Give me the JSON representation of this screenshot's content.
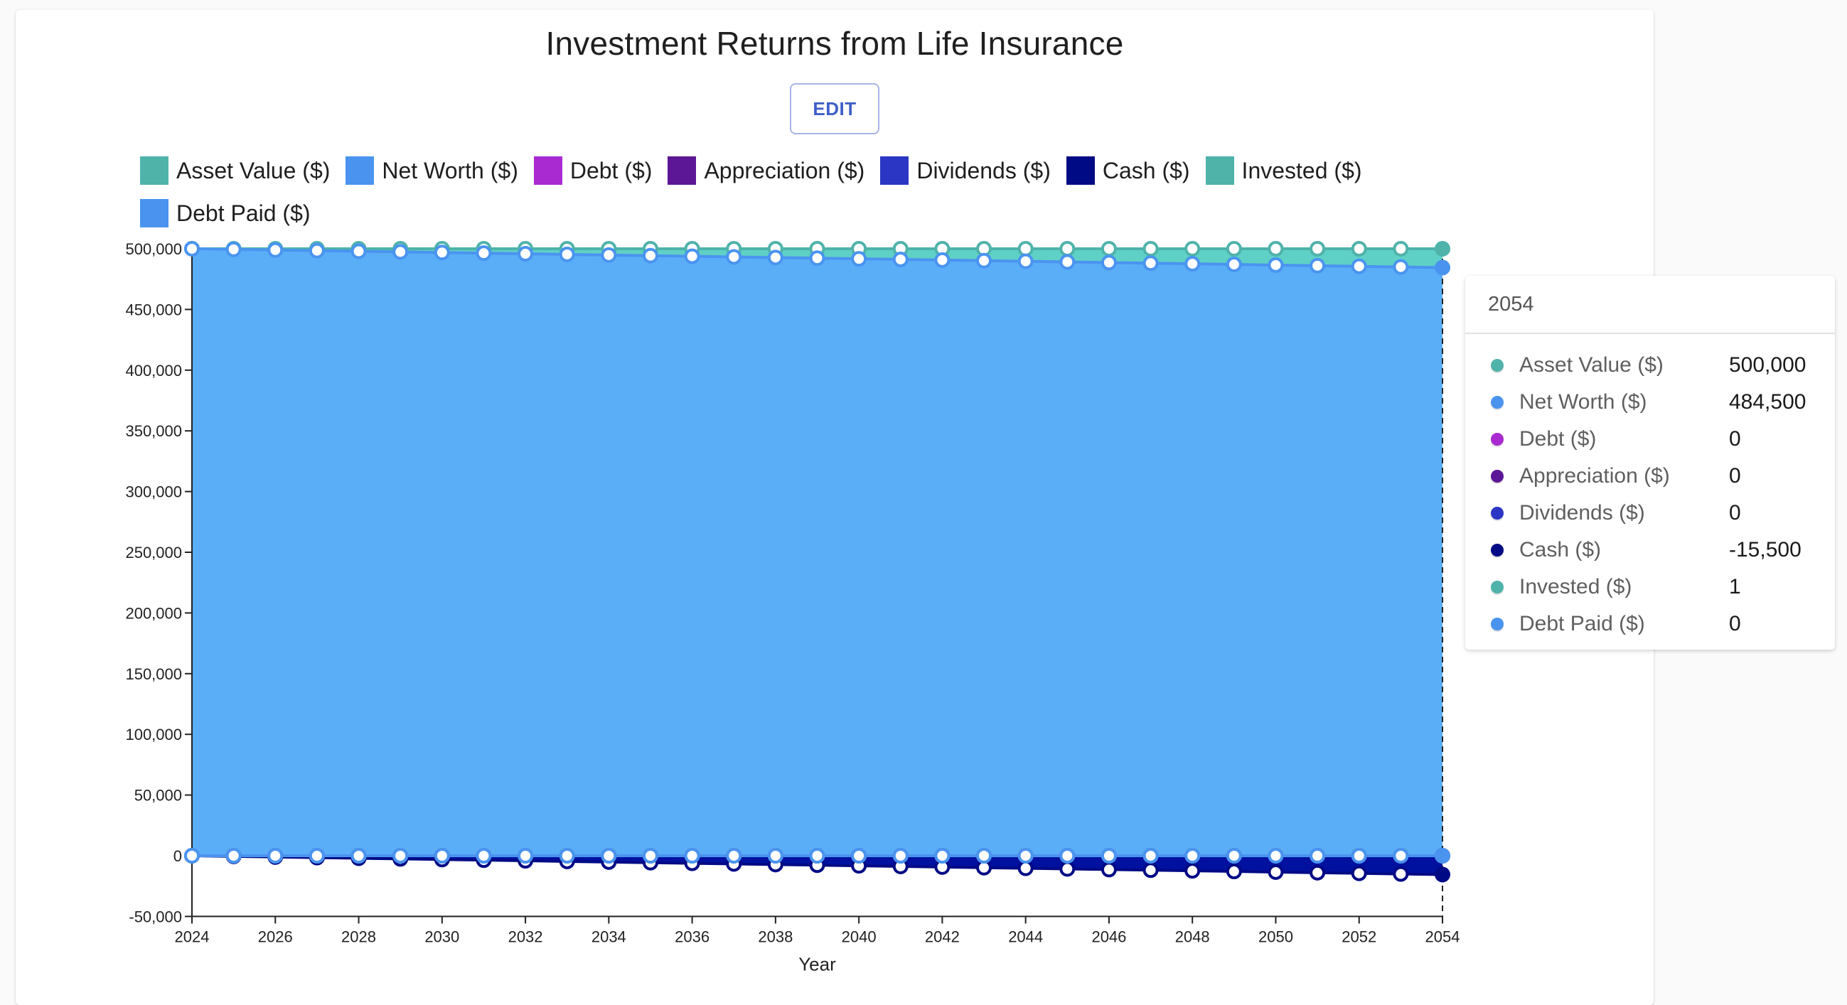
{
  "title": "Investment Returns from Life Insurance",
  "edit_button": "EDIT",
  "legend": [
    {
      "label": "Asset Value ($)",
      "color": "#4fb3aa"
    },
    {
      "label": "Net Worth ($)",
      "color": "#4a94f0"
    },
    {
      "label": "Debt ($)",
      "color": "#a92ad0"
    },
    {
      "label": "Appreciation ($)",
      "color": "#5b1796"
    },
    {
      "label": "Dividends ($)",
      "color": "#2b36c4"
    },
    {
      "label": "Cash ($)",
      "color": "#000a85"
    },
    {
      "label": "Invested ($)",
      "color": "#4fb3aa"
    },
    {
      "label": "Debt Paid ($)",
      "color": "#4a94f0"
    }
  ],
  "tooltip": {
    "header": "2054",
    "rows": [
      {
        "label": "Asset Value ($)",
        "value": "500,000",
        "color": "#4fb3aa"
      },
      {
        "label": "Net Worth ($)",
        "value": "484,500",
        "color": "#4a94f0"
      },
      {
        "label": "Debt ($)",
        "value": "0",
        "color": "#a92ad0"
      },
      {
        "label": "Appreciation ($)",
        "value": "0",
        "color": "#5b1796"
      },
      {
        "label": "Dividends ($)",
        "value": "0",
        "color": "#2b36c4"
      },
      {
        "label": "Cash ($)",
        "value": "-15,500",
        "color": "#000a85"
      },
      {
        "label": "Invested ($)",
        "value": "1",
        "color": "#4fb3aa"
      },
      {
        "label": "Debt Paid ($)",
        "value": "0",
        "color": "#4a94f0"
      }
    ]
  },
  "chart_data": {
    "type": "area",
    "title": "Investment Returns from Life Insurance",
    "xlabel": "Year",
    "ylabel": "",
    "x": [
      2024,
      2025,
      2026,
      2027,
      2028,
      2029,
      2030,
      2031,
      2032,
      2033,
      2034,
      2035,
      2036,
      2037,
      2038,
      2039,
      2040,
      2041,
      2042,
      2043,
      2044,
      2045,
      2046,
      2047,
      2048,
      2049,
      2050,
      2051,
      2052,
      2053,
      2054
    ],
    "xticks": [
      2024,
      2026,
      2028,
      2030,
      2032,
      2034,
      2036,
      2038,
      2040,
      2042,
      2044,
      2046,
      2048,
      2050,
      2052,
      2054
    ],
    "yticks": [
      -50000,
      0,
      50000,
      100000,
      150000,
      200000,
      250000,
      300000,
      350000,
      400000,
      450000,
      500000
    ],
    "ytick_labels": [
      "-50,000",
      "0",
      "50,000",
      "100,000",
      "150,000",
      "200,000",
      "250,000",
      "300,000",
      "350,000",
      "400,000",
      "450,000",
      "500,000"
    ],
    "ylim": [
      -50000,
      500000
    ],
    "xlim": [
      2024,
      2054
    ],
    "grid": false,
    "legend_position": "top",
    "series": [
      {
        "name": "Asset Value ($)",
        "color": "#4fb3aa",
        "fill": "#5fd0c6",
        "values": [
          500000,
          500000,
          500000,
          500000,
          500000,
          500000,
          500000,
          500000,
          500000,
          500000,
          500000,
          500000,
          500000,
          500000,
          500000,
          500000,
          500000,
          500000,
          500000,
          500000,
          500000,
          500000,
          500000,
          500000,
          500000,
          500000,
          500000,
          500000,
          500000,
          500000,
          500000
        ]
      },
      {
        "name": "Net Worth ($)",
        "color": "#4a94f0",
        "fill": "#5aaef7",
        "values": [
          500000,
          499483,
          498967,
          498450,
          497933,
          497417,
          496900,
          496383,
          495867,
          495350,
          494833,
          494317,
          493800,
          493283,
          492767,
          492250,
          491733,
          491217,
          490700,
          490183,
          489667,
          489150,
          488633,
          488117,
          487600,
          487083,
          486567,
          486050,
          485533,
          485017,
          484500
        ]
      },
      {
        "name": "Debt ($)",
        "color": "#a92ad0",
        "values": [
          0,
          0,
          0,
          0,
          0,
          0,
          0,
          0,
          0,
          0,
          0,
          0,
          0,
          0,
          0,
          0,
          0,
          0,
          0,
          0,
          0,
          0,
          0,
          0,
          0,
          0,
          0,
          0,
          0,
          0,
          0
        ]
      },
      {
        "name": "Appreciation ($)",
        "color": "#5b1796",
        "values": [
          0,
          0,
          0,
          0,
          0,
          0,
          0,
          0,
          0,
          0,
          0,
          0,
          0,
          0,
          0,
          0,
          0,
          0,
          0,
          0,
          0,
          0,
          0,
          0,
          0,
          0,
          0,
          0,
          0,
          0,
          0
        ]
      },
      {
        "name": "Dividends ($)",
        "color": "#2b36c4",
        "values": [
          0,
          0,
          0,
          0,
          0,
          0,
          0,
          0,
          0,
          0,
          0,
          0,
          0,
          0,
          0,
          0,
          0,
          0,
          0,
          0,
          0,
          0,
          0,
          0,
          0,
          0,
          0,
          0,
          0,
          0,
          0
        ]
      },
      {
        "name": "Cash ($)",
        "color": "#000a85",
        "fill": "#0011a0",
        "values": [
          0,
          -517,
          -1033,
          -1550,
          -2067,
          -2583,
          -3100,
          -3617,
          -4133,
          -4650,
          -5167,
          -5683,
          -6200,
          -6717,
          -7233,
          -7750,
          -8267,
          -8783,
          -9300,
          -9817,
          -10333,
          -10850,
          -11367,
          -11883,
          -12400,
          -12917,
          -13433,
          -13950,
          -14467,
          -14983,
          -15500
        ]
      },
      {
        "name": "Invested ($)",
        "color": "#4fb3aa",
        "values": [
          1,
          1,
          1,
          1,
          1,
          1,
          1,
          1,
          1,
          1,
          1,
          1,
          1,
          1,
          1,
          1,
          1,
          1,
          1,
          1,
          1,
          1,
          1,
          1,
          1,
          1,
          1,
          1,
          1,
          1,
          1
        ]
      },
      {
        "name": "Debt Paid ($)",
        "color": "#4a94f0",
        "values": [
          0,
          0,
          0,
          0,
          0,
          0,
          0,
          0,
          0,
          0,
          0,
          0,
          0,
          0,
          0,
          0,
          0,
          0,
          0,
          0,
          0,
          0,
          0,
          0,
          0,
          0,
          0,
          0,
          0,
          0,
          0
        ]
      }
    ],
    "hover": {
      "x": 2054
    }
  }
}
